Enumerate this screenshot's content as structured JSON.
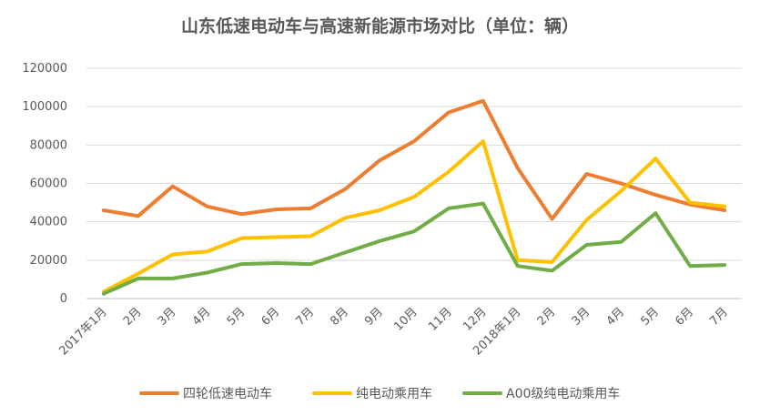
{
  "chart_data": {
    "type": "line",
    "title": "山东低速电动车与高速新能源市场对比（单位：辆）",
    "xlabel": "",
    "ylabel": "",
    "ylim": [
      0,
      120000
    ],
    "yticks": [
      0,
      20000,
      40000,
      60000,
      80000,
      100000,
      120000
    ],
    "grid": true,
    "legend_position": "bottom",
    "categories": [
      "2017年1月",
      "2月",
      "3月",
      "4月",
      "5月",
      "6月",
      "7月",
      "8月",
      "9月",
      "10月",
      "11月",
      "12月",
      "2018年1月",
      "2月",
      "3月",
      "4月",
      "5月",
      "6月",
      "7月"
    ],
    "series": [
      {
        "name": "四轮低速电动车",
        "color": "#ED7D31",
        "values": [
          46000,
          43000,
          58500,
          48000,
          44000,
          46500,
          47000,
          57000,
          72000,
          82000,
          97000,
          103000,
          68000,
          41500,
          65000,
          60000,
          54000,
          49000,
          46000
        ]
      },
      {
        "name": "纯电动乘用车",
        "color": "#FFC000",
        "values": [
          3500,
          13000,
          23000,
          24500,
          31500,
          32000,
          32500,
          42000,
          46000,
          53000,
          66000,
          82000,
          20000,
          19000,
          41000,
          56000,
          73000,
          50000,
          48000
        ]
      },
      {
        "name": "A00级纯电动乘用车",
        "color": "#70AD47",
        "values": [
          2500,
          10500,
          10500,
          13500,
          18000,
          18500,
          18000,
          24000,
          30000,
          35000,
          47000,
          49500,
          17000,
          14500,
          28000,
          29500,
          44500,
          17000,
          17500
        ]
      }
    ]
  }
}
